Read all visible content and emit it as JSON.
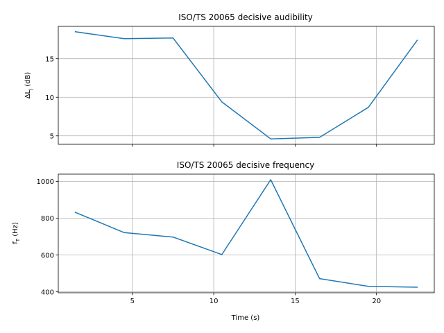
{
  "colors": {
    "series": "#1f77b4",
    "grid": "#b0b0b0"
  },
  "chart_data": [
    {
      "type": "line",
      "title": "ISO/TS 20065 decisive audibility",
      "xlabel": "",
      "ylabel": "ΔL",
      "ylabel_sub": "j",
      "ylabel_unit": " (dB)",
      "xlim": [
        0.45,
        23.55
      ],
      "ylim": [
        3.9,
        19.2
      ],
      "xticks": [
        5,
        10,
        15,
        20
      ],
      "xtick_labels_visible": false,
      "yticks": [
        5,
        10,
        15
      ],
      "ytick_labels": [
        "5",
        "10",
        "15"
      ],
      "grid": true,
      "x": [
        1.5,
        4.5,
        7.5,
        10.5,
        13.5,
        16.5,
        19.5,
        22.5
      ],
      "y": [
        18.5,
        17.6,
        17.7,
        9.4,
        4.6,
        4.8,
        8.7,
        17.4
      ]
    },
    {
      "type": "line",
      "title": "ISO/TS 20065 decisive frequency",
      "xlabel": "Time (s)",
      "ylabel": "f",
      "ylabel_sub": "T",
      "ylabel_unit": " (Hz)",
      "xlim": [
        0.45,
        23.55
      ],
      "ylim": [
        395,
        1040
      ],
      "xticks": [
        5,
        10,
        15,
        20
      ],
      "xtick_labels": [
        "5",
        "10",
        "15",
        "20"
      ],
      "xtick_labels_visible": true,
      "yticks": [
        400,
        600,
        800,
        1000
      ],
      "ytick_labels": [
        "400",
        "600",
        "800",
        "1000"
      ],
      "grid": true,
      "x": [
        1.5,
        4.5,
        7.5,
        10.5,
        13.5,
        16.5,
        19.5,
        22.5
      ],
      "y": [
        832,
        722,
        698,
        603,
        1010,
        472,
        430,
        425
      ]
    }
  ]
}
